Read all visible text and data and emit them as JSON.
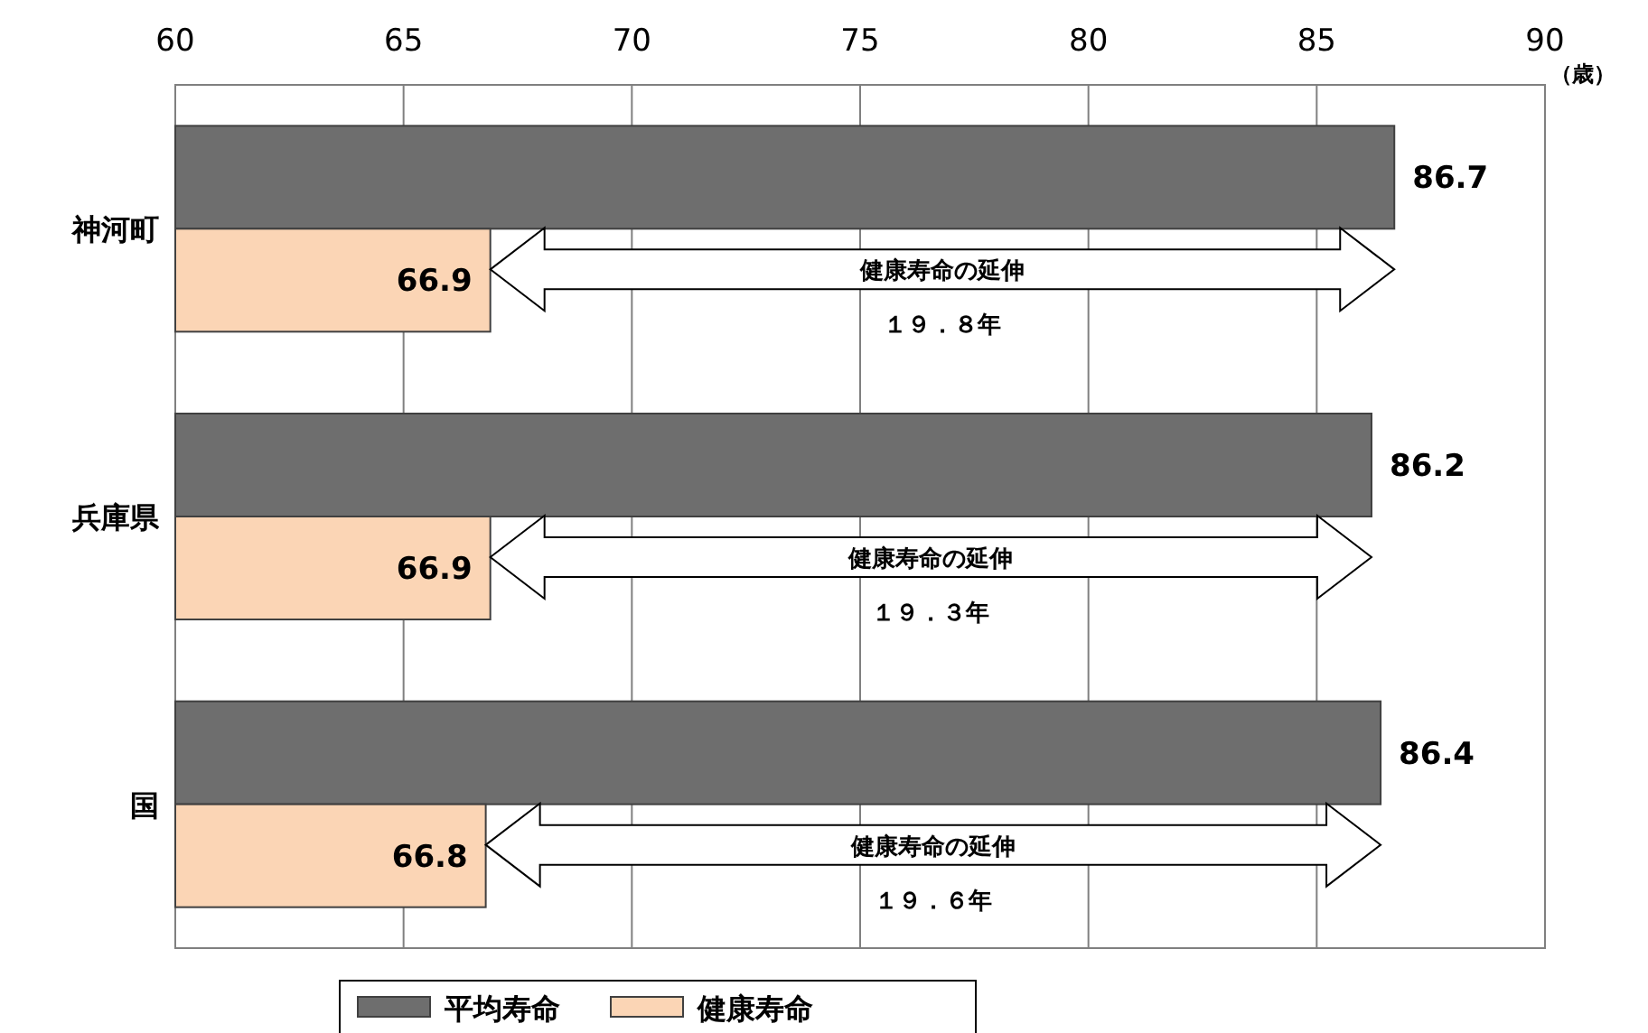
{
  "chart_data": {
    "type": "bar",
    "orientation": "horizontal",
    "categories": [
      "神河町",
      "兵庫県",
      "国"
    ],
    "series": [
      {
        "name": "平均寿命",
        "color": "#6e6e6e",
        "values": [
          86.7,
          86.2,
          86.4
        ]
      },
      {
        "name": "健康寿命",
        "color": "#fbd5b5",
        "values": [
          66.9,
          66.9,
          66.8
        ]
      }
    ],
    "xlim": [
      60,
      90
    ],
    "xticks": [
      60,
      65,
      70,
      75,
      80,
      85,
      90
    ],
    "xlabel": "（歳）",
    "grid": "x",
    "legend": "bottom",
    "data_labels": true,
    "annotations": [
      "健康寿命の延伸",
      "１９．８年",
      "健康寿命の延伸",
      "１９．３年",
      "健康寿命の延伸",
      "１９．６年"
    ]
  }
}
